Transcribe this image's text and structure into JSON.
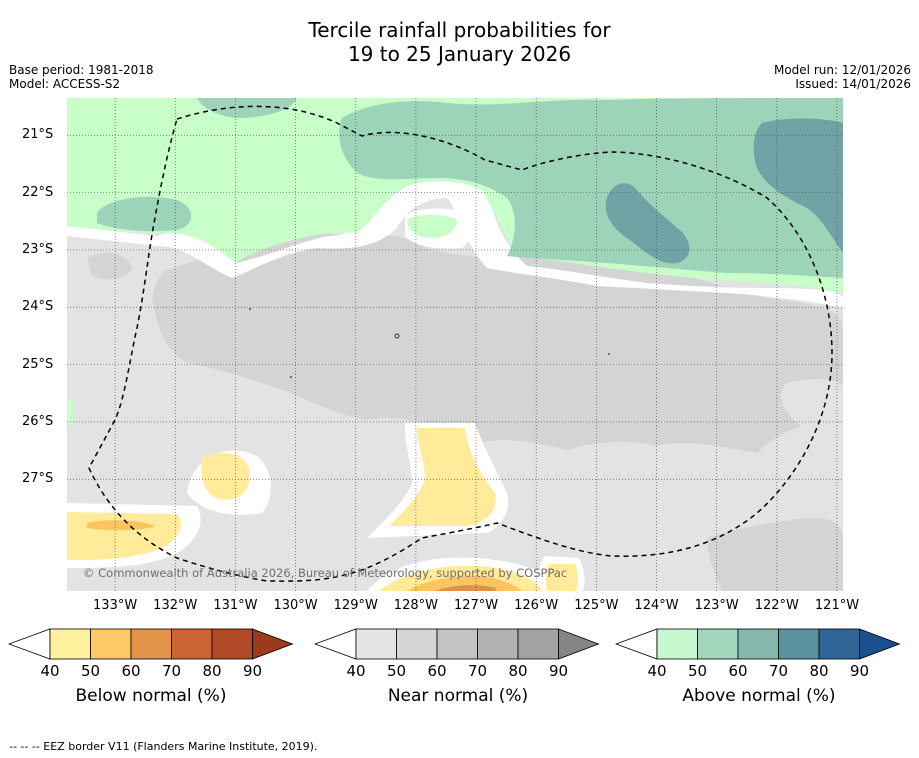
{
  "title": {
    "line1": "Tercile rainfall probabilities for",
    "line2": "19 to 25 January 2026"
  },
  "meta": {
    "base_period": "Base period: 1981-2018",
    "model": "Model: ACCESS-S2",
    "model_run": "Model run: 12/01/2026",
    "issued": "Issued: 14/01/2026"
  },
  "map": {
    "lon_range": [
      -133.8,
      -120.9
    ],
    "lat_range": [
      -28.95,
      -20.35
    ],
    "lat_labels": [
      {
        "lat": -21,
        "label": "21°S"
      },
      {
        "lat": -22,
        "label": "22°S"
      },
      {
        "lat": -23,
        "label": "23°S"
      },
      {
        "lat": -24,
        "label": "24°S"
      },
      {
        "lat": -25,
        "label": "25°S"
      },
      {
        "lat": -26,
        "label": "26°S"
      },
      {
        "lat": -27,
        "label": "27°S"
      }
    ],
    "lon_labels": [
      {
        "lon": -133,
        "label": "133°W"
      },
      {
        "lon": -132,
        "label": "132°W"
      },
      {
        "lon": -131,
        "label": "131°W"
      },
      {
        "lon": -130,
        "label": "130°W"
      },
      {
        "lon": -129,
        "label": "129°W"
      },
      {
        "lon": -128,
        "label": "128°W"
      },
      {
        "lon": -127,
        "label": "127°W"
      },
      {
        "lon": -126,
        "label": "126°W"
      },
      {
        "lon": -125,
        "label": "125°W"
      },
      {
        "lon": -124,
        "label": "124°W"
      },
      {
        "lon": -123,
        "label": "123°W"
      },
      {
        "lon": -122,
        "label": "122°W"
      },
      {
        "lon": -121,
        "label": "121°W"
      }
    ],
    "copyright": "© Commonwealth of Australia 2026, Bureau of Meteorology, supported by COSPPac",
    "colors": {
      "white": "#ffffff",
      "near40": "#e3e3e3",
      "near50": "#d4d4d4",
      "above40": "#c8ffc8",
      "above50": "#9dd3b9",
      "above60": "#6fa3a5",
      "below40": "#ffeb99",
      "below50": "#fbc45f",
      "below60": "#e0914a"
    }
  },
  "colorbars": [
    {
      "name": "below",
      "label": "Below normal (%)",
      "ticks": [
        "40",
        "50",
        "60",
        "70",
        "80",
        "90"
      ],
      "colors": [
        "#fff09d",
        "#fdc964",
        "#e1944a",
        "#cc6434",
        "#b04a26",
        "#9b3a1d"
      ]
    },
    {
      "name": "near",
      "label": "Near normal (%)",
      "ticks": [
        "40",
        "50",
        "60",
        "70",
        "80",
        "90"
      ],
      "colors": [
        "#e5e5e5",
        "#d5d5d5",
        "#c4c4c4",
        "#b2b2b2",
        "#a2a2a2",
        "#858585"
      ]
    },
    {
      "name": "above",
      "label": "Above normal (%)",
      "ticks": [
        "40",
        "50",
        "60",
        "70",
        "80",
        "90"
      ],
      "colors": [
        "#c8f8cf",
        "#a3d6bc",
        "#84b8ad",
        "#5a93a0",
        "#2e6496",
        "#1c4f8e"
      ]
    }
  ],
  "footer": "--  --  -- EEZ border V11 (Flanders Marine Institute, 2019)."
}
